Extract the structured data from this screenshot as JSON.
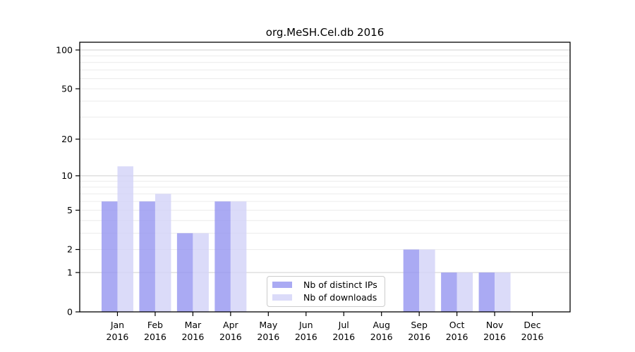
{
  "chart_data": {
    "type": "bar",
    "title": "org.MeSH.Cel.db 2016",
    "year_label": "2016",
    "categories": [
      "Jan",
      "Feb",
      "Mar",
      "Apr",
      "May",
      "Jun",
      "Jul",
      "Aug",
      "Sep",
      "Oct",
      "Nov",
      "Dec"
    ],
    "series": [
      {
        "name": "Nb of distinct IPs",
        "color": "#aaaaf3",
        "values": [
          6,
          6,
          3,
          6,
          0,
          0,
          0,
          0,
          2,
          1,
          1,
          0
        ]
      },
      {
        "name": "Nb of downloads",
        "color": "#dbdbf9",
        "values": [
          12,
          7,
          3,
          6,
          0,
          0,
          0,
          0,
          2,
          1,
          1,
          0
        ]
      }
    ],
    "xlabel": "",
    "ylabel": "",
    "y_axis": {
      "scale": "log1p",
      "ticks": [
        0,
        1,
        2,
        5,
        10,
        20,
        50,
        100
      ],
      "major_gridlines": [
        1,
        10,
        100
      ],
      "minor_gridlines": [
        2,
        3,
        4,
        5,
        6,
        7,
        8,
        9,
        20,
        30,
        40,
        50,
        60,
        70,
        80,
        90
      ],
      "ylim": [
        0,
        110
      ]
    },
    "grid": "horizontal",
    "legend": {
      "position": "bottom-center-inside"
    },
    "colors": {
      "bar_distinct_ips": "#aaaaf3",
      "bar_downloads": "#dbdbf9",
      "major_grid": "#d0d0d0",
      "minor_grid": "#ececec",
      "axis": "#000000",
      "text": "#000000",
      "legend_border": "#cccccc",
      "background": "#ffffff"
    }
  }
}
